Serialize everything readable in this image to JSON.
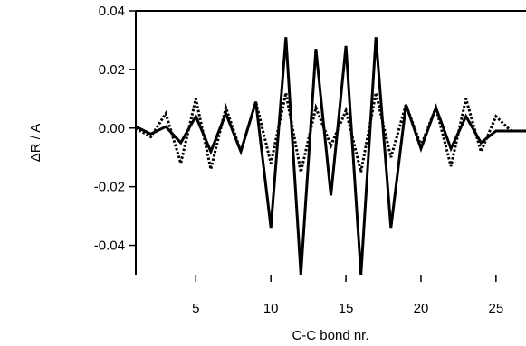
{
  "chart_data": {
    "type": "line",
    "title": "",
    "xlabel": "C-C bond nr.",
    "ylabel": "ΔR / A",
    "xlim": [
      1,
      27
    ],
    "ylim": [
      -0.05,
      0.04
    ],
    "xticks": [
      5,
      10,
      15,
      20,
      25
    ],
    "xtick_labels": [
      "5",
      "10",
      "15",
      "20",
      "25"
    ],
    "yticks": [
      0.04,
      0.02,
      0.0,
      -0.02,
      -0.04
    ],
    "ytick_labels": [
      "0.04",
      "0.02",
      "0.00",
      "-0.02",
      "-0.04"
    ],
    "grid": false,
    "legend": "none",
    "series": [
      {
        "style": "solid",
        "color": "#000000",
        "x": [
          1,
          2,
          3,
          4,
          5,
          6,
          7,
          8,
          9,
          10,
          11,
          12,
          13,
          14,
          15,
          16,
          17,
          18,
          19,
          20,
          21,
          22,
          23,
          24,
          25,
          26,
          27
        ],
        "y": [
          0.0005,
          -0.002,
          0.0005,
          -0.005,
          0.004,
          -0.008,
          0.005,
          -0.008,
          0.009,
          -0.034,
          0.031,
          -0.05,
          0.027,
          -0.023,
          0.028,
          -0.05,
          0.031,
          -0.034,
          0.008,
          -0.007,
          0.007,
          -0.007,
          0.004,
          -0.005,
          -0.001,
          -0.001,
          -0.001
        ]
      },
      {
        "style": "dotted",
        "color": "#000000",
        "x": [
          1,
          2,
          3,
          4,
          5,
          6,
          7,
          8,
          9,
          10,
          11,
          12,
          13,
          14,
          15,
          16,
          17,
          18,
          19,
          20,
          21,
          22,
          23,
          24,
          25,
          26,
          27
        ],
        "y": [
          0.0,
          -0.003,
          0.005,
          -0.012,
          0.01,
          -0.014,
          0.007,
          -0.008,
          0.009,
          -0.012,
          0.012,
          -0.015,
          0.007,
          -0.006,
          0.006,
          -0.015,
          0.012,
          -0.01,
          0.008,
          -0.006,
          0.007,
          -0.013,
          0.01,
          -0.008,
          0.004,
          -0.001,
          -0.001
        ]
      }
    ]
  }
}
